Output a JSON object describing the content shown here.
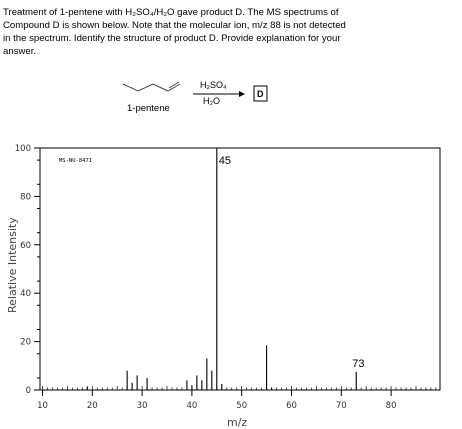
{
  "question": {
    "lines": [
      "Treatment of 1-pentene with H₂SO₄/H₂O gave product D. The MS spectrums of",
      "Compound D is shown below. Note that the molecular ion, m/z 88 is not detected",
      "in the spectrum. Identify the structure of product D. Provide explanation for your",
      "answer."
    ]
  },
  "reaction": {
    "reactant_name": "1-pentene",
    "reagent_top": "H₂SO₄",
    "reagent_bottom": "H₂O",
    "product_label": "D"
  },
  "chart_data": {
    "type": "bar",
    "spectrum_id": "MS-NU-8471",
    "xlabel": "m/z",
    "ylabel": "Relative Intensity",
    "xlim": [
      10,
      89
    ],
    "ylim": [
      0,
      100
    ],
    "x_ticks": [
      10,
      20,
      30,
      40,
      50,
      60,
      70,
      80
    ],
    "y_ticks": [
      0,
      20,
      40,
      60,
      80,
      100
    ],
    "peaks": [
      {
        "mz": 19,
        "intensity": 1.5
      },
      {
        "mz": 27,
        "intensity": 8
      },
      {
        "mz": 28,
        "intensity": 3
      },
      {
        "mz": 29,
        "intensity": 6
      },
      {
        "mz": 31,
        "intensity": 5
      },
      {
        "mz": 39,
        "intensity": 4
      },
      {
        "mz": 40,
        "intensity": 2
      },
      {
        "mz": 41,
        "intensity": 6
      },
      {
        "mz": 42,
        "intensity": 4
      },
      {
        "mz": 43,
        "intensity": 13
      },
      {
        "mz": 44,
        "intensity": 8
      },
      {
        "mz": 45,
        "intensity": 100
      },
      {
        "mz": 46,
        "intensity": 2.5
      },
      {
        "mz": 55,
        "intensity": 18.5
      },
      {
        "mz": 56,
        "intensity": 1
      },
      {
        "mz": 73,
        "intensity": 7.5
      }
    ],
    "peak_labels": [
      {
        "mz": 45,
        "text": "45"
      },
      {
        "mz": 73,
        "text": "73"
      }
    ]
  }
}
